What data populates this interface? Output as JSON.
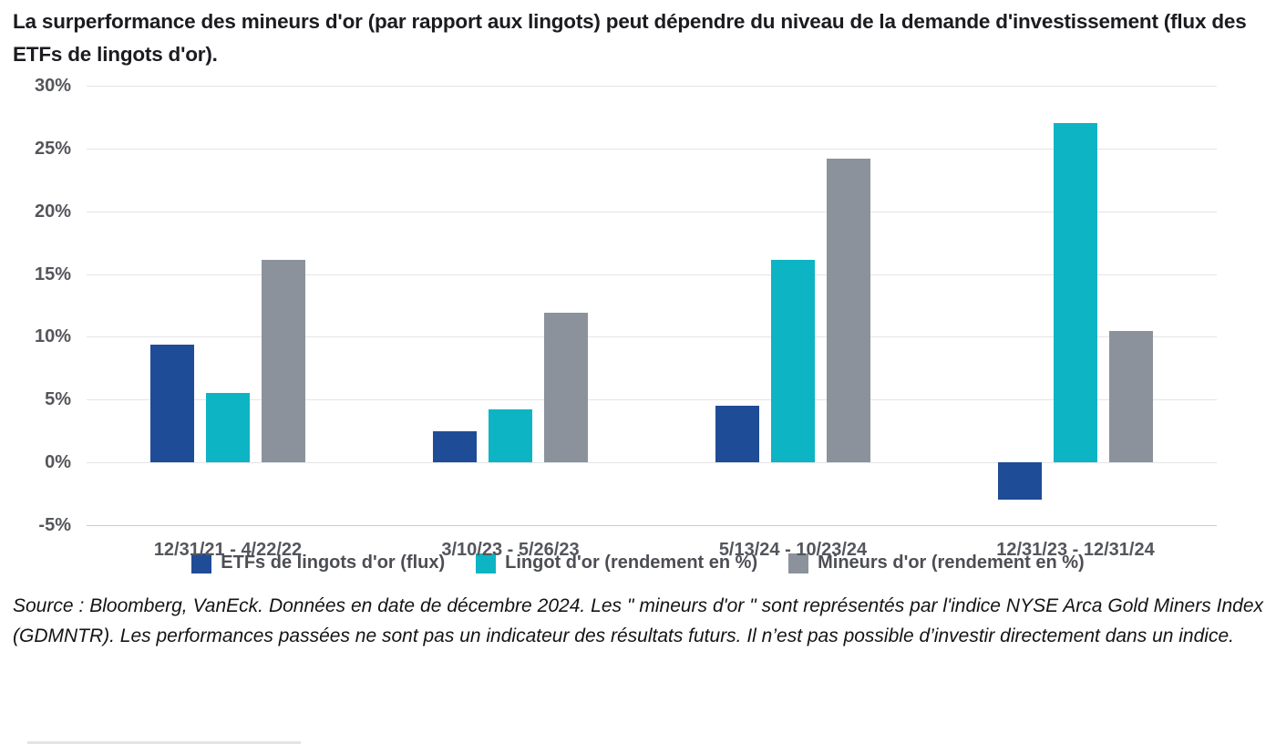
{
  "title": "La surperformance des mineurs d'or (par rapport aux lingots) peut dépendre du niveau de la demande d'investissement (flux des ETFs de lingots d'or).",
  "chart_data": {
    "type": "bar",
    "title": "La surperformance des mineurs d'or (par rapport aux lingots) peut dépendre du niveau de la demande d'investissement (flux des ETFs de lingots d'or).",
    "categories": [
      "12/31/21 - 4/22/22",
      "3/10/23 - 5/26/23",
      "5/13/24 - 10/23/24",
      "12/31/23 - 12/31/24"
    ],
    "series": [
      {
        "name": "ETFs de lingots d'or (flux)",
        "color": "#1f4c96",
        "values": [
          9.4,
          2.5,
          4.5,
          -3.0
        ]
      },
      {
        "name": "Lingot d'or (rendement en %)",
        "color": "#0db4c4",
        "values": [
          5.5,
          4.2,
          16.1,
          27.0
        ]
      },
      {
        "name": "Mineurs d'or (rendement en %)",
        "color": "#8c929b",
        "values": [
          16.1,
          11.9,
          24.2,
          10.5
        ]
      }
    ],
    "xlabel": "",
    "ylabel": "",
    "ylim": [
      -5,
      30
    ],
    "ytick_step": 5,
    "ytick_labels": [
      "30%",
      "25%",
      "20%",
      "15%",
      "10%",
      "5%",
      "0%",
      "-5%"
    ],
    "grid": "horizontal",
    "legend_position": "bottom"
  },
  "legend": {
    "items": [
      {
        "label": "ETFs de lingots d'or (flux)",
        "color": "#1f4c96"
      },
      {
        "label": "Lingot d'or (rendement en %)",
        "color": "#0db4c4"
      },
      {
        "label": "Mineurs d'or (rendement en %)",
        "color": "#8c929b"
      }
    ]
  },
  "source_text": "Source : Bloomberg, VanEck. Données en date de décembre 2024. Les \" mineurs d'or \" sont représentés par l'indice NYSE Arca Gold Miners Index (GDMNTR). Les performances passées ne sont pas un indicateur des résultats futurs. Il n’est pas possible d’investir directement dans un indice.",
  "colors": {
    "series_blue": "#1f4c96",
    "series_teal": "#0db4c4",
    "series_gray": "#8c929b",
    "gridline": "#e4e5e8",
    "axis_text": "#54565c",
    "title_text": "#1b1b20"
  }
}
